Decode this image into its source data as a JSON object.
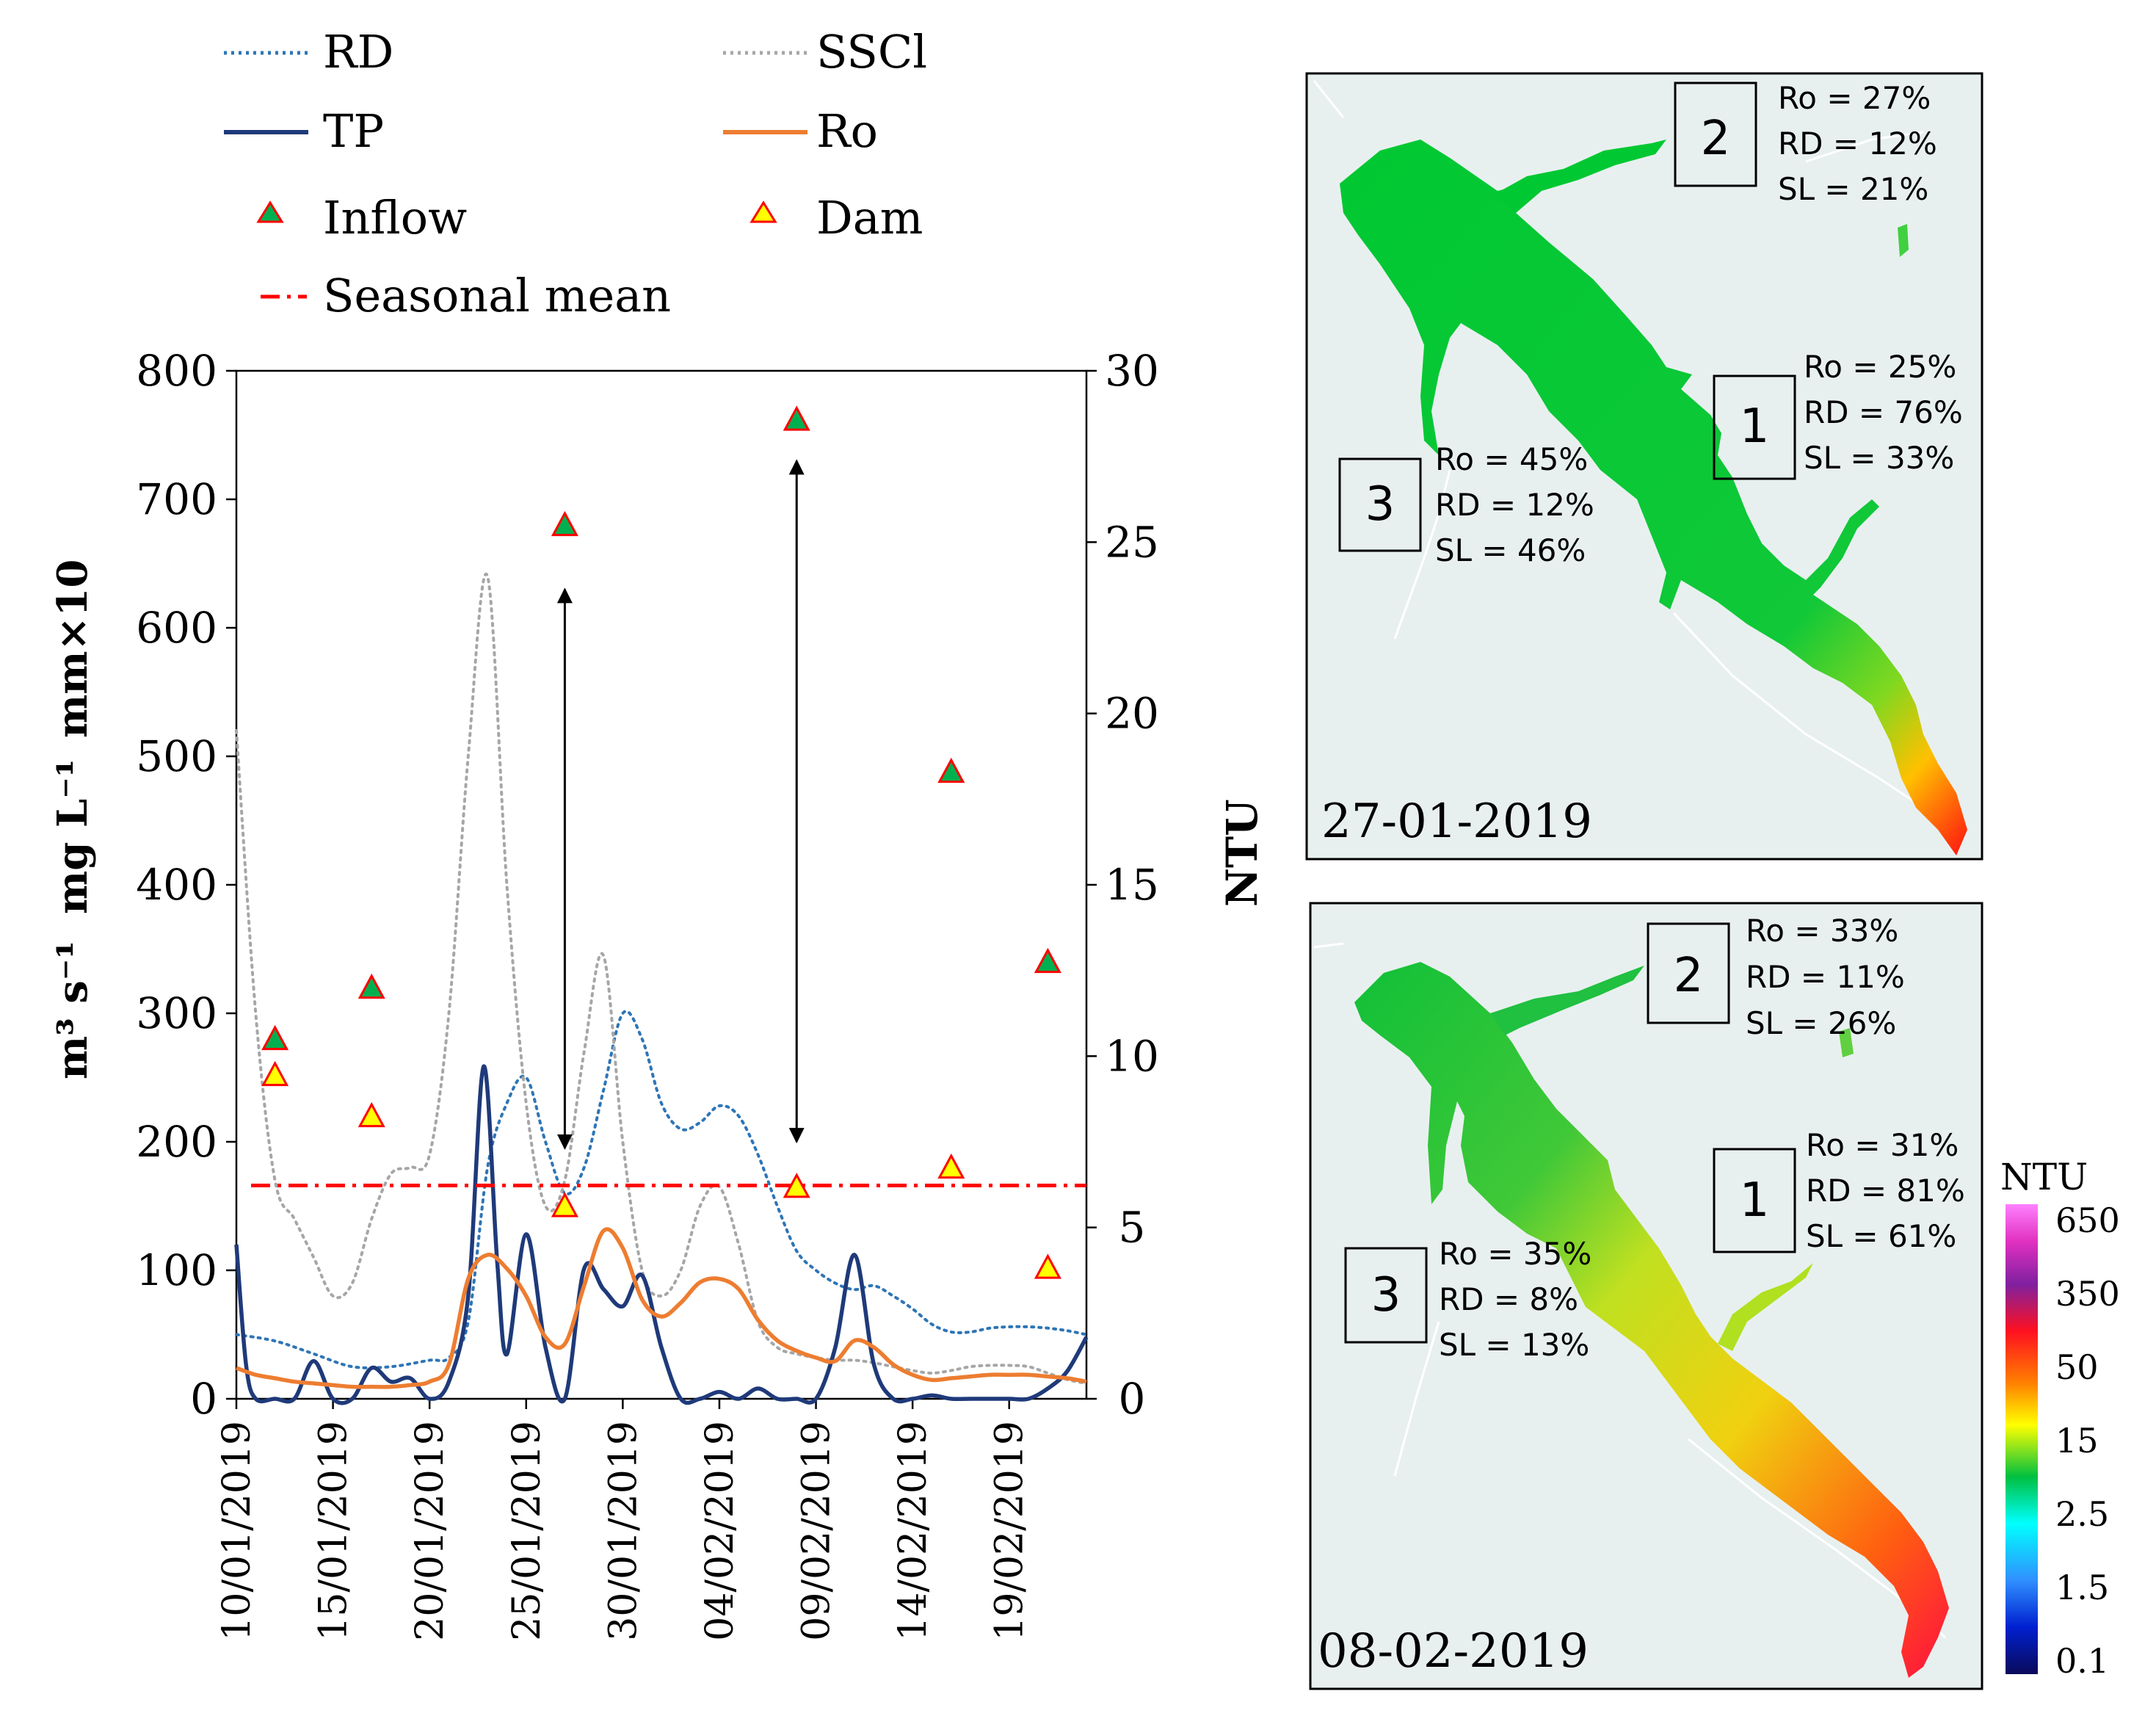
{
  "colors": {
    "rd": "#2e75b6",
    "sscl": "#a6a6a6",
    "tp": "#1f3a7a",
    "ro": "#ed7d31",
    "inflow_fill": "#00b050",
    "dam_fill": "#ffff00",
    "marker_edge": "#ff0000",
    "seasonal": "#ff0000",
    "map_bg": "#e8f0ef",
    "axis": "#000000"
  },
  "legend": {
    "rd": "RD",
    "sscl": "SSCl",
    "tp": "TP",
    "ro": "Ro",
    "inflow": "Inflow",
    "dam": "Dam",
    "seasonal": "Seasonal mean"
  },
  "chart_data": {
    "type": "line",
    "x_start": "10/01/2019",
    "x_range_days": [
      0,
      44
    ],
    "xticks": [
      {
        "day": 0,
        "label": "10/01/2019"
      },
      {
        "day": 5,
        "label": "15/01/2019"
      },
      {
        "day": 10,
        "label": "20/01/2019"
      },
      {
        "day": 15,
        "label": "25/01/2019"
      },
      {
        "day": 20,
        "label": "30/01/2019"
      },
      {
        "day": 25,
        "label": "04/02/2019"
      },
      {
        "day": 30,
        "label": "09/02/2019"
      },
      {
        "day": 35,
        "label": "14/02/2019"
      },
      {
        "day": 40,
        "label": "19/02/2019"
      }
    ],
    "y_left": {
      "label_parts": [
        "m³ s⁻¹",
        "mg L⁻¹",
        "mm×10"
      ],
      "lim": [
        0,
        800
      ],
      "ticks": [
        0,
        100,
        200,
        300,
        400,
        500,
        600,
        700,
        800
      ]
    },
    "y_right": {
      "label": "NTU",
      "lim": [
        0,
        30
      ],
      "ticks": [
        0,
        5,
        10,
        15,
        20,
        25,
        30
      ]
    },
    "series": [
      {
        "name": "RD",
        "axis": "left",
        "style": "dotted",
        "points": [
          [
            0,
            50
          ],
          [
            2,
            45
          ],
          [
            4,
            35
          ],
          [
            6,
            25
          ],
          [
            8,
            25
          ],
          [
            10,
            30
          ],
          [
            11,
            32
          ],
          [
            12,
            60
          ],
          [
            13,
            180
          ],
          [
            14,
            230
          ],
          [
            15,
            250
          ],
          [
            16,
            200
          ],
          [
            17,
            160
          ],
          [
            18,
            180
          ],
          [
            19,
            240
          ],
          [
            20,
            300
          ],
          [
            21,
            280
          ],
          [
            22,
            230
          ],
          [
            23,
            210
          ],
          [
            24,
            215
          ],
          [
            25,
            228
          ],
          [
            26,
            220
          ],
          [
            27,
            190
          ],
          [
            28,
            150
          ],
          [
            29,
            115
          ],
          [
            30,
            100
          ],
          [
            31,
            90
          ],
          [
            32,
            85
          ],
          [
            33,
            88
          ],
          [
            34,
            80
          ],
          [
            35,
            70
          ],
          [
            36,
            58
          ],
          [
            37,
            52
          ],
          [
            38,
            52
          ],
          [
            39,
            55
          ],
          [
            40,
            56
          ],
          [
            41,
            56
          ],
          [
            42,
            55
          ],
          [
            43,
            53
          ],
          [
            44,
            50
          ]
        ]
      },
      {
        "name": "SSCl",
        "axis": "left",
        "style": "dotted",
        "points": [
          [
            0,
            520
          ],
          [
            1,
            300
          ],
          [
            2,
            170
          ],
          [
            3,
            140
          ],
          [
            4,
            110
          ],
          [
            5,
            80
          ],
          [
            6,
            90
          ],
          [
            7,
            140
          ],
          [
            8,
            175
          ],
          [
            9,
            180
          ],
          [
            10,
            190
          ],
          [
            11,
            300
          ],
          [
            12,
            500
          ],
          [
            13,
            640
          ],
          [
            14,
            400
          ],
          [
            15,
            230
          ],
          [
            16,
            150
          ],
          [
            17,
            170
          ],
          [
            18,
            270
          ],
          [
            19,
            345
          ],
          [
            20,
            200
          ],
          [
            21,
            100
          ],
          [
            22,
            80
          ],
          [
            23,
            100
          ],
          [
            24,
            150
          ],
          [
            25,
            165
          ],
          [
            26,
            120
          ],
          [
            27,
            60
          ],
          [
            28,
            40
          ],
          [
            29,
            35
          ],
          [
            30,
            32
          ],
          [
            31,
            30
          ],
          [
            32,
            30
          ],
          [
            33,
            28
          ],
          [
            34,
            25
          ],
          [
            35,
            22
          ],
          [
            36,
            20
          ],
          [
            37,
            22
          ],
          [
            38,
            25
          ],
          [
            39,
            26
          ],
          [
            40,
            26
          ],
          [
            41,
            25
          ],
          [
            42,
            20
          ],
          [
            43,
            15
          ],
          [
            44,
            12
          ]
        ]
      },
      {
        "name": "TP",
        "axis": "right",
        "style": "solid",
        "points": [
          [
            0,
            4.5
          ],
          [
            0.5,
            1
          ],
          [
            1,
            0
          ],
          [
            2,
            0
          ],
          [
            3,
            0
          ],
          [
            4,
            1.1
          ],
          [
            5,
            0
          ],
          [
            6,
            0
          ],
          [
            7,
            0.9
          ],
          [
            8,
            0.5
          ],
          [
            9,
            0.6
          ],
          [
            10,
            0
          ],
          [
            11,
            0.5
          ],
          [
            12,
            3
          ],
          [
            12.8,
            9.7
          ],
          [
            13.5,
            4
          ],
          [
            14,
            1.3
          ],
          [
            15,
            4.8
          ],
          [
            16,
            1.5
          ],
          [
            17,
            0
          ],
          [
            18,
            3.8
          ],
          [
            19,
            3.2
          ],
          [
            20,
            2.7
          ],
          [
            21,
            3.6
          ],
          [
            22,
            1.5
          ],
          [
            23,
            0
          ],
          [
            24,
            0
          ],
          [
            25,
            0.2
          ],
          [
            26,
            0
          ],
          [
            27,
            0.3
          ],
          [
            28,
            0
          ],
          [
            29,
            0
          ],
          [
            30,
            0
          ],
          [
            31,
            1.5
          ],
          [
            32,
            4.2
          ],
          [
            33,
            1
          ],
          [
            34,
            0
          ],
          [
            35,
            0
          ],
          [
            36,
            0.1
          ],
          [
            37,
            0
          ],
          [
            38,
            0
          ],
          [
            39,
            0
          ],
          [
            40,
            0
          ],
          [
            41,
            0
          ],
          [
            42,
            0.3
          ],
          [
            43,
            0.8
          ],
          [
            44,
            1.8
          ]
        ]
      },
      {
        "name": "Ro",
        "axis": "right",
        "style": "solid",
        "points": [
          [
            0,
            0.9
          ],
          [
            1,
            0.7
          ],
          [
            2,
            0.6
          ],
          [
            3,
            0.5
          ],
          [
            4,
            0.45
          ],
          [
            5,
            0.4
          ],
          [
            6,
            0.35
          ],
          [
            7,
            0.35
          ],
          [
            8,
            0.35
          ],
          [
            9,
            0.4
          ],
          [
            10,
            0.5
          ],
          [
            11,
            1
          ],
          [
            12,
            3.5
          ],
          [
            13,
            4.2
          ],
          [
            14,
            3.8
          ],
          [
            15,
            3
          ],
          [
            16,
            1.8
          ],
          [
            17,
            1.6
          ],
          [
            18,
            3.3
          ],
          [
            19,
            4.9
          ],
          [
            20,
            4.4
          ],
          [
            21,
            2.9
          ],
          [
            22,
            2.4
          ],
          [
            23,
            2.8
          ],
          [
            24,
            3.4
          ],
          [
            25,
            3.5
          ],
          [
            26,
            3.2
          ],
          [
            27,
            2.3
          ],
          [
            28,
            1.7
          ],
          [
            29,
            1.4
          ],
          [
            30,
            1.2
          ],
          [
            31,
            1.1
          ],
          [
            32,
            1.7
          ],
          [
            33,
            1.5
          ],
          [
            34,
            1
          ],
          [
            35,
            0.7
          ],
          [
            36,
            0.55
          ],
          [
            37,
            0.6
          ],
          [
            38,
            0.65
          ],
          [
            39,
            0.7
          ],
          [
            40,
            0.7
          ],
          [
            41,
            0.7
          ],
          [
            42,
            0.65
          ],
          [
            43,
            0.6
          ],
          [
            44,
            0.5
          ]
        ]
      }
    ],
    "inflow": [
      [
        2,
        280
      ],
      [
        7,
        320
      ],
      [
        17,
        680
      ],
      [
        29,
        762
      ],
      [
        37,
        488
      ],
      [
        42,
        340
      ]
    ],
    "dam": [
      [
        2,
        252
      ],
      [
        7,
        220
      ],
      [
        17,
        150
      ],
      [
        29,
        165
      ],
      [
        37,
        180
      ],
      [
        42,
        102
      ]
    ],
    "seasonal_mean": 166,
    "arrows": [
      {
        "day": 17,
        "from": 630,
        "to": 195
      },
      {
        "day": 29,
        "from": 730,
        "to": 200
      }
    ]
  },
  "maps": {
    "colorbar": {
      "title": "NTU",
      "ticks": [
        "650",
        "350",
        "50",
        "15",
        "2.5",
        "1.5",
        "0.1"
      ]
    },
    "map1": {
      "date": "27-01-2019",
      "box1": {
        "num": "1",
        "lines": [
          "Ro = 25%",
          "RD = 76%",
          "SL = 33%"
        ]
      },
      "box2": {
        "num": "2",
        "lines": [
          "Ro = 27%",
          "RD = 12%",
          "SL = 21%"
        ]
      },
      "box3": {
        "num": "3",
        "lines": [
          "Ro = 45%",
          "RD = 12%",
          "SL = 46%"
        ]
      }
    },
    "map2": {
      "date": "08-02-2019",
      "box1": {
        "num": "1",
        "lines": [
          "Ro = 31%",
          "RD = 81%",
          "SL = 61%"
        ]
      },
      "box2": {
        "num": "2",
        "lines": [
          "Ro = 33%",
          "RD = 11%",
          "SL = 26%"
        ]
      },
      "box3": {
        "num": "3",
        "lines": [
          "Ro = 35%",
          "RD = 8%",
          "SL = 13%"
        ]
      }
    }
  }
}
